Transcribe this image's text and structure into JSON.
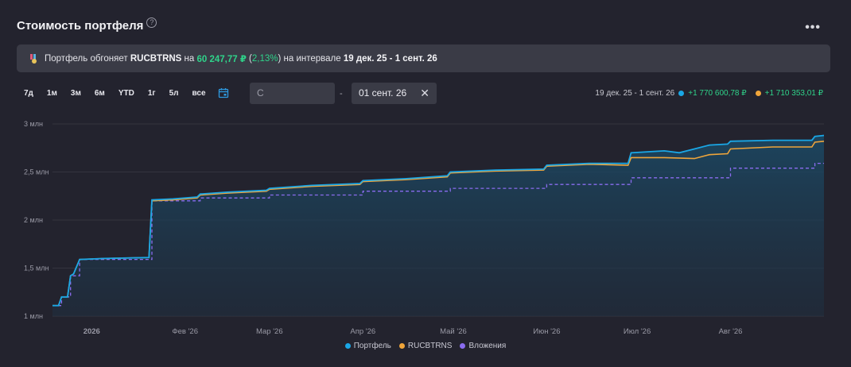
{
  "header": {
    "title": "Стоимость портфеля",
    "help_icon": "question-circle-icon",
    "more_icon": "more-dots-icon"
  },
  "banner": {
    "icon": "medal-ribbon-icon",
    "text_1": "Портфель обгоняет ",
    "benchmark": "RUCBTRNS",
    "text_2": " на ",
    "amount": "60 247,77 ₽",
    "text_3": " (",
    "percent": "2,13%",
    "text_4": ") на интервале ",
    "interval": "19 дек. 25 - 1 сент. 26"
  },
  "periods": [
    "7д",
    "1м",
    "3м",
    "6м",
    "YTD",
    "1г",
    "5л",
    "все"
  ],
  "calendar_icon": "calendar-icon",
  "date_range": {
    "from_placeholder": "С",
    "separator": "-",
    "to_value": "01 сент. 26",
    "clear_icon": "close-icon"
  },
  "summary": {
    "interval": "19 дек. 25 - 1 сент. 26",
    "portfolio_gain": "+1 770 600,78 ₽",
    "benchmark_gain": "+1 710 353,01 ₽"
  },
  "colors": {
    "portfolio": "#1aa7e6",
    "benchmark": "#f0a53a",
    "investments": "#8a6cf0",
    "positive": "#2fd38a"
  },
  "chart_data": {
    "type": "line",
    "x_unit": "date",
    "ylim": [
      1000000,
      3000000
    ],
    "y_ticks": [
      1000000,
      1500000,
      2000000,
      2500000,
      3000000
    ],
    "y_tick_labels": [
      "1 млн",
      "1,5 млн",
      "2 млн",
      "2,5 млн",
      "3 млн"
    ],
    "x_ticks": [
      "2026-01-01",
      "2026-02-01",
      "2026-03-01",
      "2026-04-01",
      "2026-05-01",
      "2026-06-01",
      "2026-07-01",
      "2026-08-01"
    ],
    "x_tick_labels": [
      "2026",
      "Фев '26",
      "Мар '26",
      "Апр '26",
      "Май '26",
      "Июн '26",
      "Июл '26",
      "Авг '26"
    ],
    "x_range": [
      "2025-12-19",
      "2026-09-01"
    ],
    "grid": true,
    "legend": "bottom-center",
    "series": [
      {
        "name": "Портфель",
        "style": "area-line",
        "points": [
          [
            "2025-12-19",
            1110000
          ],
          [
            "2025-12-21",
            1110000
          ],
          [
            "2025-12-22",
            1200000
          ],
          [
            "2025-12-24",
            1200000
          ],
          [
            "2025-12-25",
            1420000
          ],
          [
            "2025-12-26",
            1440000
          ],
          [
            "2025-12-28",
            1590000
          ],
          [
            "2026-01-05",
            1600000
          ],
          [
            "2026-01-20",
            1610000
          ],
          [
            "2026-01-21",
            2210000
          ],
          [
            "2026-01-28",
            2220000
          ],
          [
            "2026-02-05",
            2240000
          ],
          [
            "2026-02-06",
            2270000
          ],
          [
            "2026-02-15",
            2290000
          ],
          [
            "2026-02-28",
            2310000
          ],
          [
            "2026-03-01",
            2330000
          ],
          [
            "2026-03-15",
            2360000
          ],
          [
            "2026-03-31",
            2380000
          ],
          [
            "2026-04-01",
            2410000
          ],
          [
            "2026-04-15",
            2430000
          ],
          [
            "2026-04-29",
            2460000
          ],
          [
            "2026-04-30",
            2500000
          ],
          [
            "2026-05-15",
            2520000
          ],
          [
            "2026-05-31",
            2530000
          ],
          [
            "2026-06-01",
            2570000
          ],
          [
            "2026-06-15",
            2590000
          ],
          [
            "2026-06-28",
            2590000
          ],
          [
            "2026-06-29",
            2700000
          ],
          [
            "2026-07-10",
            2720000
          ],
          [
            "2026-07-15",
            2700000
          ],
          [
            "2026-07-20",
            2740000
          ],
          [
            "2026-07-25",
            2780000
          ],
          [
            "2026-07-31",
            2790000
          ],
          [
            "2026-08-01",
            2820000
          ],
          [
            "2026-08-15",
            2830000
          ],
          [
            "2026-08-28",
            2830000
          ],
          [
            "2026-08-29",
            2870000
          ],
          [
            "2026-09-01",
            2880000
          ]
        ]
      },
      {
        "name": "RUCBTRNS",
        "style": "line",
        "points": [
          [
            "2025-12-19",
            1110000
          ],
          [
            "2025-12-21",
            1110000
          ],
          [
            "2025-12-22",
            1200000
          ],
          [
            "2025-12-24",
            1200000
          ],
          [
            "2025-12-25",
            1420000
          ],
          [
            "2025-12-26",
            1440000
          ],
          [
            "2025-12-28",
            1590000
          ],
          [
            "2026-01-05",
            1600000
          ],
          [
            "2026-01-20",
            1610000
          ],
          [
            "2026-01-21",
            2200000
          ],
          [
            "2026-01-28",
            2210000
          ],
          [
            "2026-02-05",
            2230000
          ],
          [
            "2026-02-06",
            2260000
          ],
          [
            "2026-02-15",
            2280000
          ],
          [
            "2026-02-28",
            2300000
          ],
          [
            "2026-03-01",
            2320000
          ],
          [
            "2026-03-15",
            2350000
          ],
          [
            "2026-03-31",
            2370000
          ],
          [
            "2026-04-01",
            2400000
          ],
          [
            "2026-04-15",
            2420000
          ],
          [
            "2026-04-29",
            2450000
          ],
          [
            "2026-04-30",
            2490000
          ],
          [
            "2026-05-15",
            2510000
          ],
          [
            "2026-05-31",
            2520000
          ],
          [
            "2026-06-01",
            2560000
          ],
          [
            "2026-06-15",
            2580000
          ],
          [
            "2026-06-28",
            2570000
          ],
          [
            "2026-06-29",
            2650000
          ],
          [
            "2026-07-10",
            2650000
          ],
          [
            "2026-07-20",
            2640000
          ],
          [
            "2026-07-25",
            2680000
          ],
          [
            "2026-07-31",
            2690000
          ],
          [
            "2026-08-01",
            2740000
          ],
          [
            "2026-08-15",
            2760000
          ],
          [
            "2026-08-28",
            2760000
          ],
          [
            "2026-08-29",
            2810000
          ],
          [
            "2026-09-01",
            2820000
          ]
        ]
      },
      {
        "name": "Вложения",
        "style": "dashed-step",
        "points": [
          [
            "2025-12-19",
            1110000
          ],
          [
            "2025-12-22",
            1200000
          ],
          [
            "2025-12-25",
            1420000
          ],
          [
            "2025-12-28",
            1590000
          ],
          [
            "2026-01-21",
            2200000
          ],
          [
            "2026-02-06",
            2230000
          ],
          [
            "2026-03-01",
            2260000
          ],
          [
            "2026-04-01",
            2300000
          ],
          [
            "2026-04-30",
            2330000
          ],
          [
            "2026-06-01",
            2370000
          ],
          [
            "2026-06-29",
            2440000
          ],
          [
            "2026-08-01",
            2540000
          ],
          [
            "2026-08-29",
            2590000
          ],
          [
            "2026-09-01",
            2590000
          ]
        ]
      }
    ]
  }
}
